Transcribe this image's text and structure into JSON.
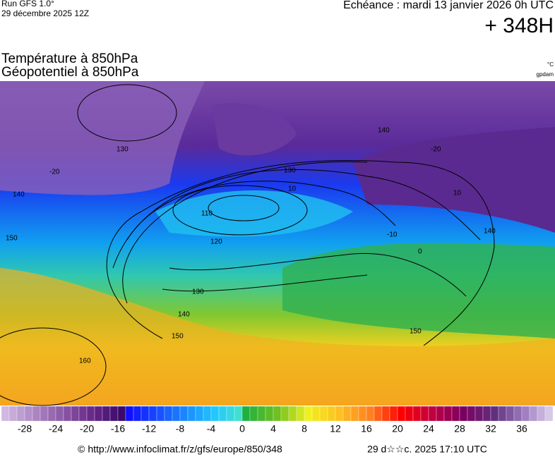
{
  "header": {
    "run": "Run GFS 1.0°",
    "date": "29 décembre 2025 12Z",
    "echeance": "Echéance : mardi 13 janvier 2026 0h UTC",
    "lead": "+ 348H"
  },
  "titles": [
    "Température à 850hPa",
    "Géopotentiel à 850hPa"
  ],
  "units": [
    "°C",
    "gpdam"
  ],
  "map": {
    "labels": [
      "110",
      "120",
      "130",
      "140",
      "150",
      "160",
      "130",
      "140",
      "150",
      "140",
      "-20",
      "-20",
      "-10",
      "0",
      "10",
      "10",
      "150",
      "130",
      "140"
    ]
  },
  "colorbar": {
    "ticks": [
      "-28",
      "-24",
      "-20",
      "-16",
      "-12",
      "-8",
      "-4",
      "0",
      "4",
      "8",
      "12",
      "16",
      "20",
      "24",
      "28",
      "32",
      "36"
    ]
  },
  "footer": {
    "url": "© http://www.infoclimat.fr/z/gfs/europe/850/348",
    "stamp": "29 d☆☆c. 2025 17:10 UTC"
  }
}
